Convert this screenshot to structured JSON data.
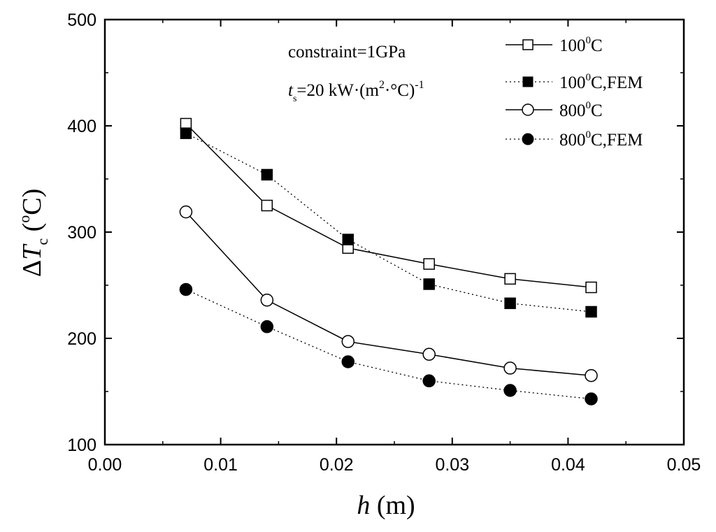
{
  "chart_data": {
    "type": "line",
    "xlabel": {
      "italic": "h",
      "rest": " (m)"
    },
    "ylabel": {
      "prefix": "Δ",
      "italic": "T",
      "sub": "c",
      "unit_open": " (",
      "sup": "o",
      "unit_close": "C)"
    },
    "xlim": [
      0.0,
      0.05
    ],
    "ylim": [
      100,
      500
    ],
    "xticks": [
      0.0,
      0.01,
      0.02,
      0.03,
      0.04,
      0.05
    ],
    "xtick_labels": [
      "0.00",
      "0.01",
      "0.02",
      "0.03",
      "0.04",
      "0.05"
    ],
    "yticks": [
      100,
      200,
      300,
      400,
      500
    ],
    "ytick_labels": [
      "100",
      "200",
      "300",
      "400",
      "500"
    ],
    "grid": false,
    "legend_position": "top-right",
    "annotations": {
      "line1": "constraint=1GPa",
      "line2": {
        "italic": "t",
        "sub": "s",
        "text": "=20 kW·(m",
        "sup": "2",
        "text2": "·°C)",
        "sup2": "-1"
      }
    },
    "x": [
      0.007,
      0.014,
      0.021,
      0.028,
      0.035,
      0.042
    ],
    "series": [
      {
        "name": "100⁰C",
        "legend": {
          "a": "100",
          "sup": "0",
          "b": "C"
        },
        "values": [
          402,
          325,
          285,
          270,
          256,
          248
        ],
        "marker": "square-open",
        "line": "solid"
      },
      {
        "name": "100⁰C,FEM",
        "legend": {
          "a": "100",
          "sup": "0",
          "b": "C,FEM"
        },
        "values": [
          393,
          354,
          293,
          251,
          233,
          225
        ],
        "marker": "square-filled",
        "line": "dotted"
      },
      {
        "name": "800⁰C",
        "legend": {
          "a": "800",
          "sup": "0",
          "b": "C"
        },
        "values": [
          319,
          236,
          197,
          185,
          172,
          165
        ],
        "marker": "circle-open",
        "line": "solid"
      },
      {
        "name": "800⁰C,FEM",
        "legend": {
          "a": "800",
          "sup": "0",
          "b": "C,FEM"
        },
        "values": [
          246,
          211,
          178,
          160,
          151,
          143
        ],
        "marker": "circle-filled",
        "line": "dotted"
      }
    ]
  }
}
